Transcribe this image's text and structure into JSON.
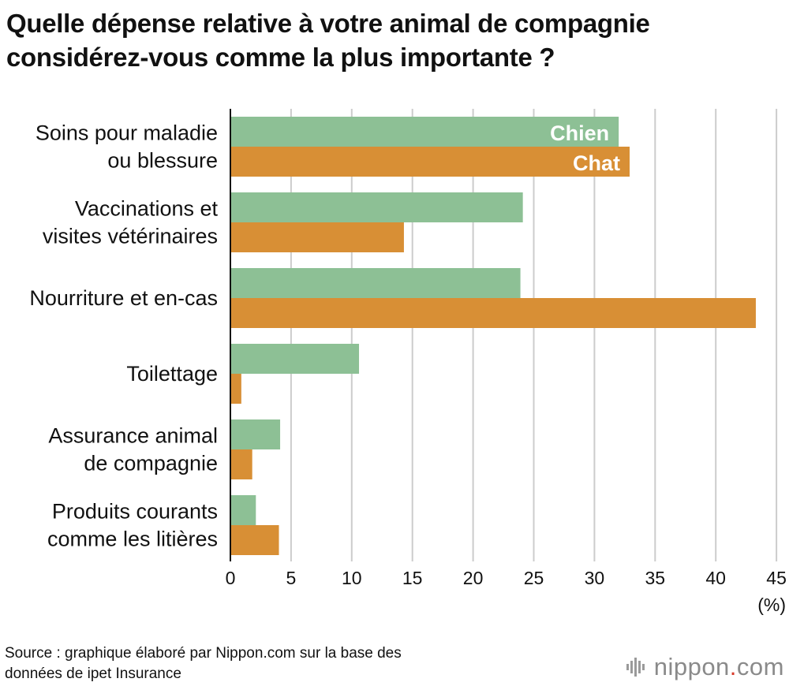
{
  "title_lines": [
    "Quelle dépense relative à votre animal de compagnie",
    "considérez-vous comme la plus importante ?"
  ],
  "chart_data": {
    "type": "bar",
    "orientation": "horizontal",
    "categories": [
      [
        "Soins pour maladie",
        "ou blessure"
      ],
      [
        "Vaccinations et",
        "visites vétérinaires"
      ],
      [
        "Nourriture et en-cas"
      ],
      [
        "Toilettage"
      ],
      [
        "Assurance animal",
        "de compagnie"
      ],
      [
        "Produits courants",
        "comme les litières"
      ]
    ],
    "series": [
      {
        "name": "Chien",
        "color": "#8dc095",
        "values": [
          32.0,
          24.1,
          23.9,
          10.6,
          4.1,
          2.1
        ]
      },
      {
        "name": "Chat",
        "color": "#d88f35",
        "values": [
          32.9,
          14.3,
          43.3,
          0.9,
          1.8,
          4.0
        ]
      }
    ],
    "xlim": [
      0,
      45
    ],
    "xticks": [
      0,
      5,
      10,
      15,
      20,
      25,
      30,
      35,
      40,
      45
    ],
    "xlabel": "(%)",
    "grid": true,
    "legend": "inside first bar pair"
  },
  "source_lines": [
    "Source : graphique élaboré par Nippon.com sur la base des",
    "données de ipet Insurance"
  ],
  "brand": {
    "name": "nippon",
    "dot": ".",
    "tld": "com"
  }
}
